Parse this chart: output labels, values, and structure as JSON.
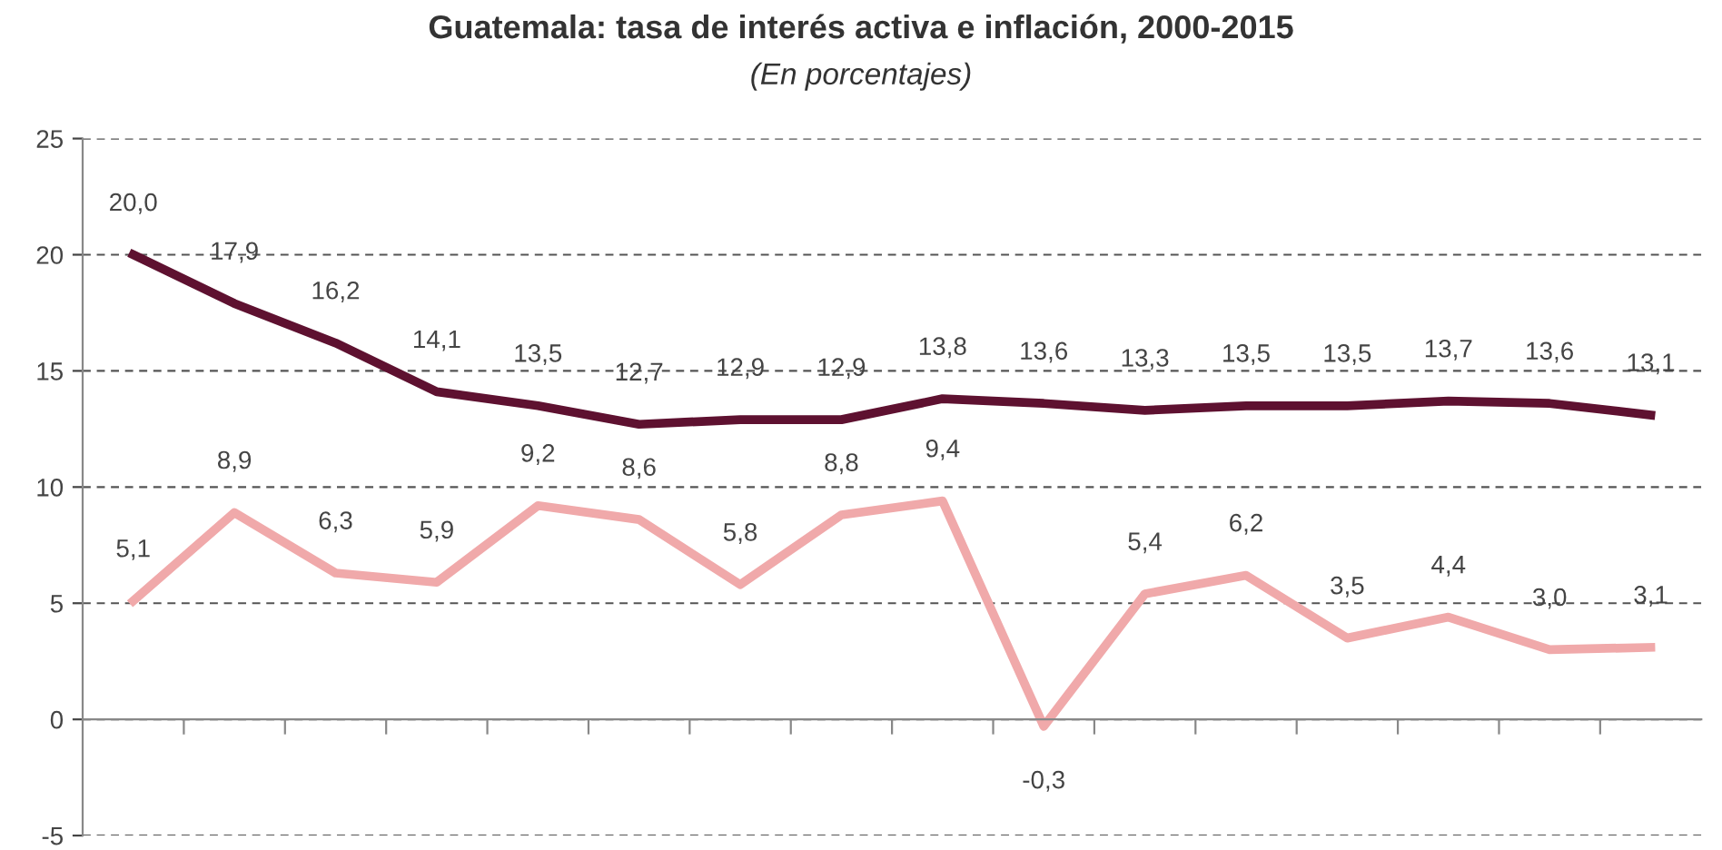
{
  "chart_data": {
    "type": "line",
    "title": "Guatemala: tasa de interés activa e inflación, 2000-2015",
    "subtitle": "(En porcentajes)",
    "categories": [
      null,
      null,
      null,
      null,
      null,
      null,
      null,
      null,
      null,
      null,
      null,
      null,
      null,
      null,
      null,
      null
    ],
    "series": [
      {
        "color": "#5e1130",
        "values": [
          20.0,
          17.9,
          16.2,
          14.1,
          13.5,
          12.7,
          12.9,
          12.9,
          13.8,
          13.6,
          13.3,
          13.5,
          13.5,
          13.7,
          13.6,
          13.1
        ],
        "value_labels": [
          "20,0",
          "17,9",
          "16,2",
          "14,1",
          "13,5",
          "12,7",
          "12,9",
          "12,9",
          "13,8",
          "13,6",
          "13,3",
          "13,5",
          "13,5",
          "13,7",
          "13,6",
          "13,1"
        ]
      },
      {
        "color": "#f0a9aa",
        "values": [
          5.1,
          8.9,
          6.3,
          5.9,
          9.2,
          8.6,
          5.8,
          8.8,
          9.4,
          -0.3,
          5.4,
          6.2,
          3.5,
          4.4,
          3.0,
          3.1
        ],
        "value_labels": [
          "5,1",
          "8,9",
          "6,3",
          "5,9",
          "9,2",
          "8,6",
          "5,8",
          "8,8",
          "9,4",
          "-0,3",
          "5,4",
          "6,2",
          "3,5",
          "4,4",
          "3,0",
          "3,1"
        ]
      }
    ],
    "ylim": [
      -5,
      25
    ],
    "yticks": [
      -5,
      0,
      5,
      10,
      15,
      20,
      25
    ],
    "grid": "y",
    "legend": false,
    "marker": "none",
    "line_style": "solid"
  }
}
